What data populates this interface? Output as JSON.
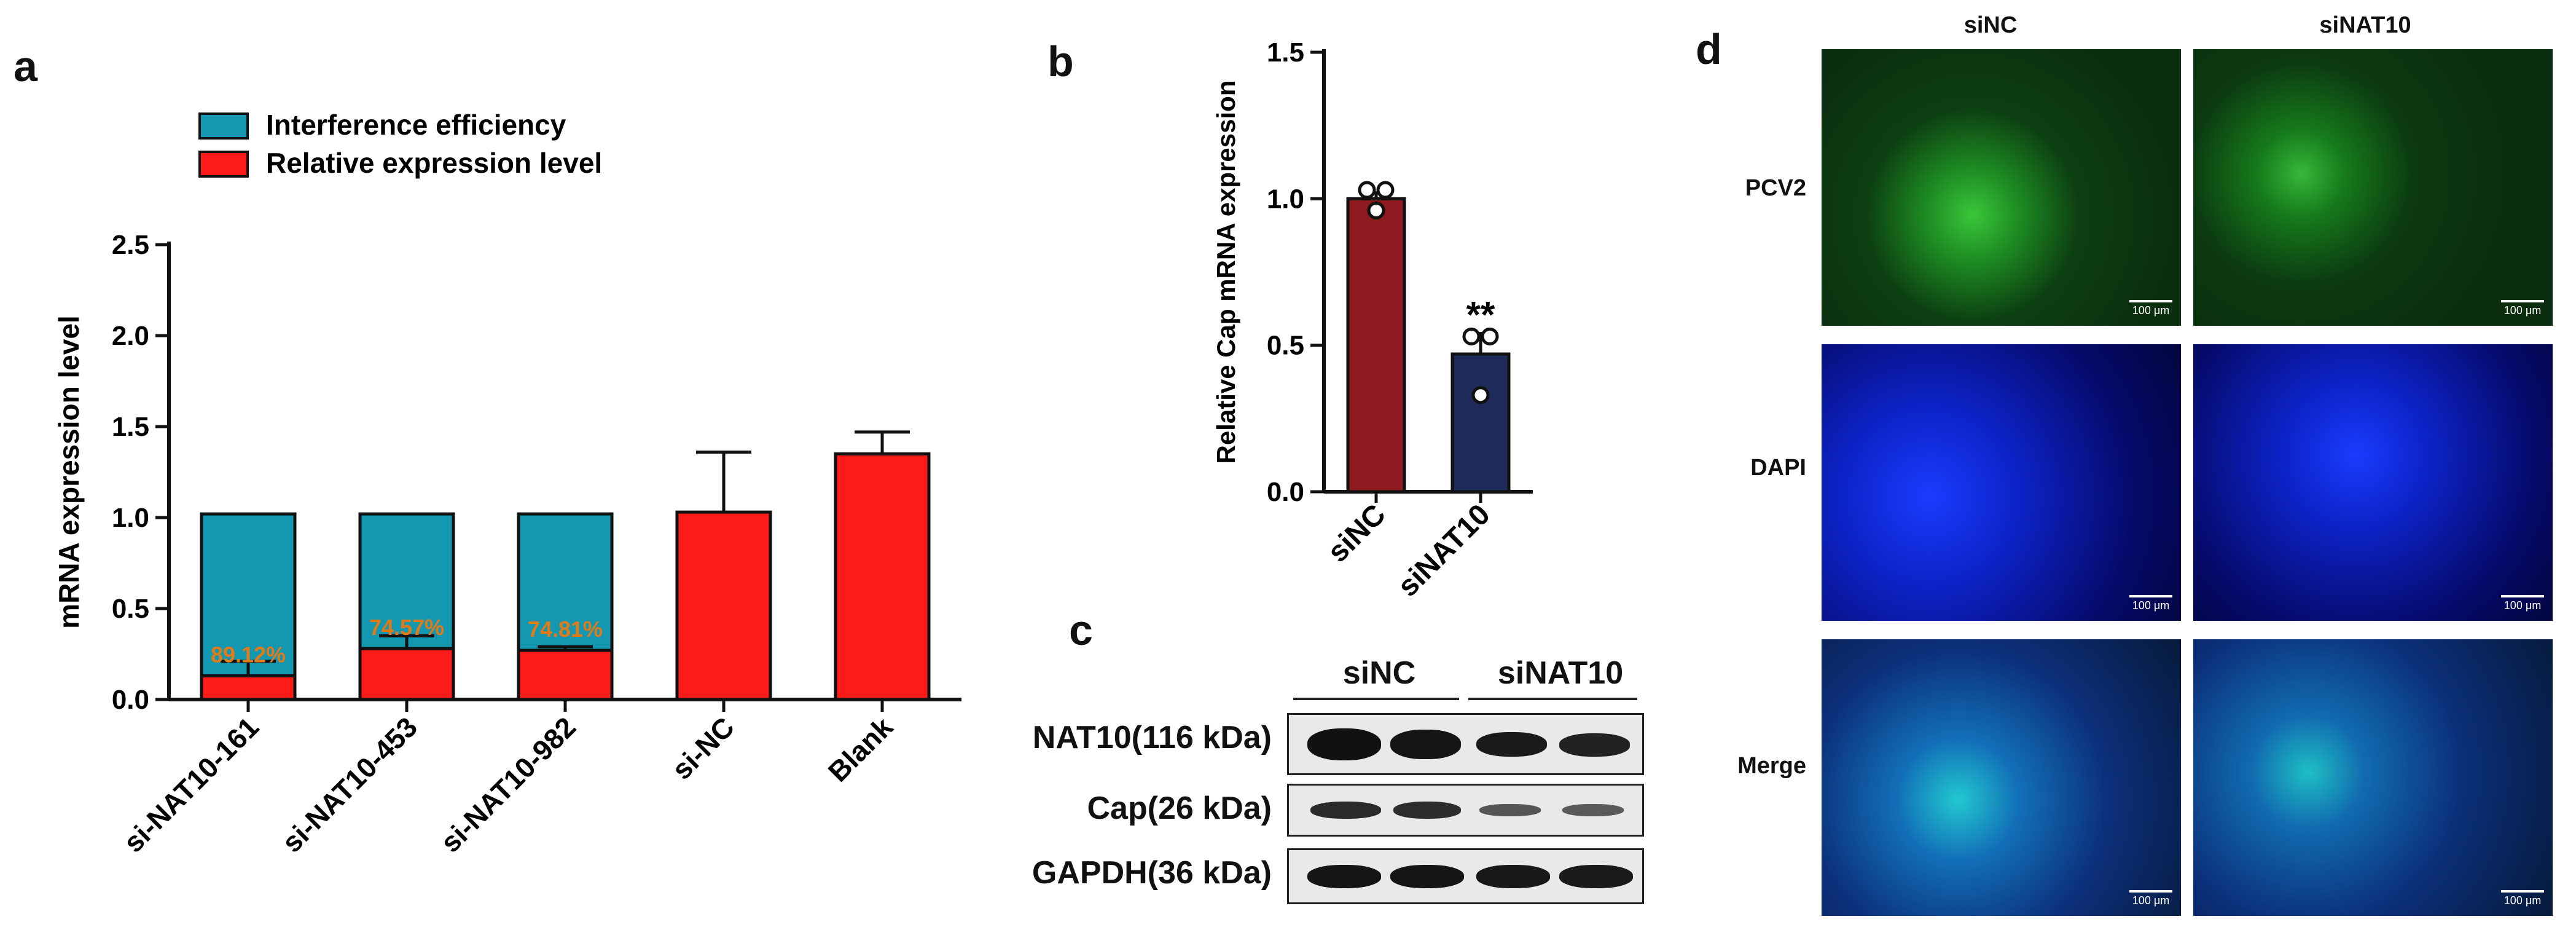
{
  "panels": {
    "a": "a",
    "b": "b",
    "c": "c",
    "d": "d"
  },
  "chart_data": [
    {
      "panel": "a",
      "type": "bar",
      "categories": [
        "si-NAT10-161",
        "si-NAT10-453",
        "si-NAT10-982",
        "si-NC",
        "Blank"
      ],
      "series": [
        {
          "name": "Interference efficiency",
          "color": "#1498b1",
          "values": [
            0.89,
            0.74,
            0.75,
            null,
            null
          ]
        },
        {
          "name": "Relative expression level",
          "color": "#ff1a1a",
          "values": [
            0.13,
            0.28,
            0.27,
            1.03,
            1.35
          ],
          "error": [
            0.08,
            0.07,
            0.02,
            0.33,
            0.12
          ]
        }
      ],
      "stacked": true,
      "annotations": [
        "89.12%",
        "74.57%",
        "74.81%"
      ],
      "annotation_color": "#e07b18",
      "xlabel": "",
      "ylabel": "mRNA expression level",
      "ylim": [
        0,
        2.5
      ],
      "yticks": [
        "0.0",
        "0.5",
        "1.0",
        "1.5",
        "2.0",
        "2.5"
      ],
      "legend_position": "top-left",
      "grid": false
    },
    {
      "panel": "b",
      "type": "bar",
      "categories": [
        "siNC",
        "siNAT10"
      ],
      "values": [
        1.0,
        0.47
      ],
      "error": [
        0.02,
        0.07
      ],
      "colors": [
        "#8c1a1e",
        "#1e2a5a"
      ],
      "points": [
        [
          1.03,
          1.03,
          0.96
        ],
        [
          0.53,
          0.53,
          0.33
        ]
      ],
      "significance": [
        "",
        "**"
      ],
      "xlabel": "",
      "ylabel": "Relative Cap mRNA expression",
      "ylim": [
        0,
        1.5
      ],
      "yticks": [
        "0.0",
        "0.5",
        "1.0",
        "1.5"
      ],
      "grid": false
    }
  ],
  "western_blot": {
    "groups": [
      "siNC",
      "siNAT10"
    ],
    "rows": [
      "NAT10(116 kDa)",
      "Cap(26 kDa)",
      "GAPDH(36 kDa)"
    ]
  },
  "microscopy": {
    "columns": [
      "siNC",
      "siNAT10"
    ],
    "rows": [
      "PCV2",
      "DAPI",
      "Merge"
    ],
    "scale_bar": "100 μm"
  }
}
